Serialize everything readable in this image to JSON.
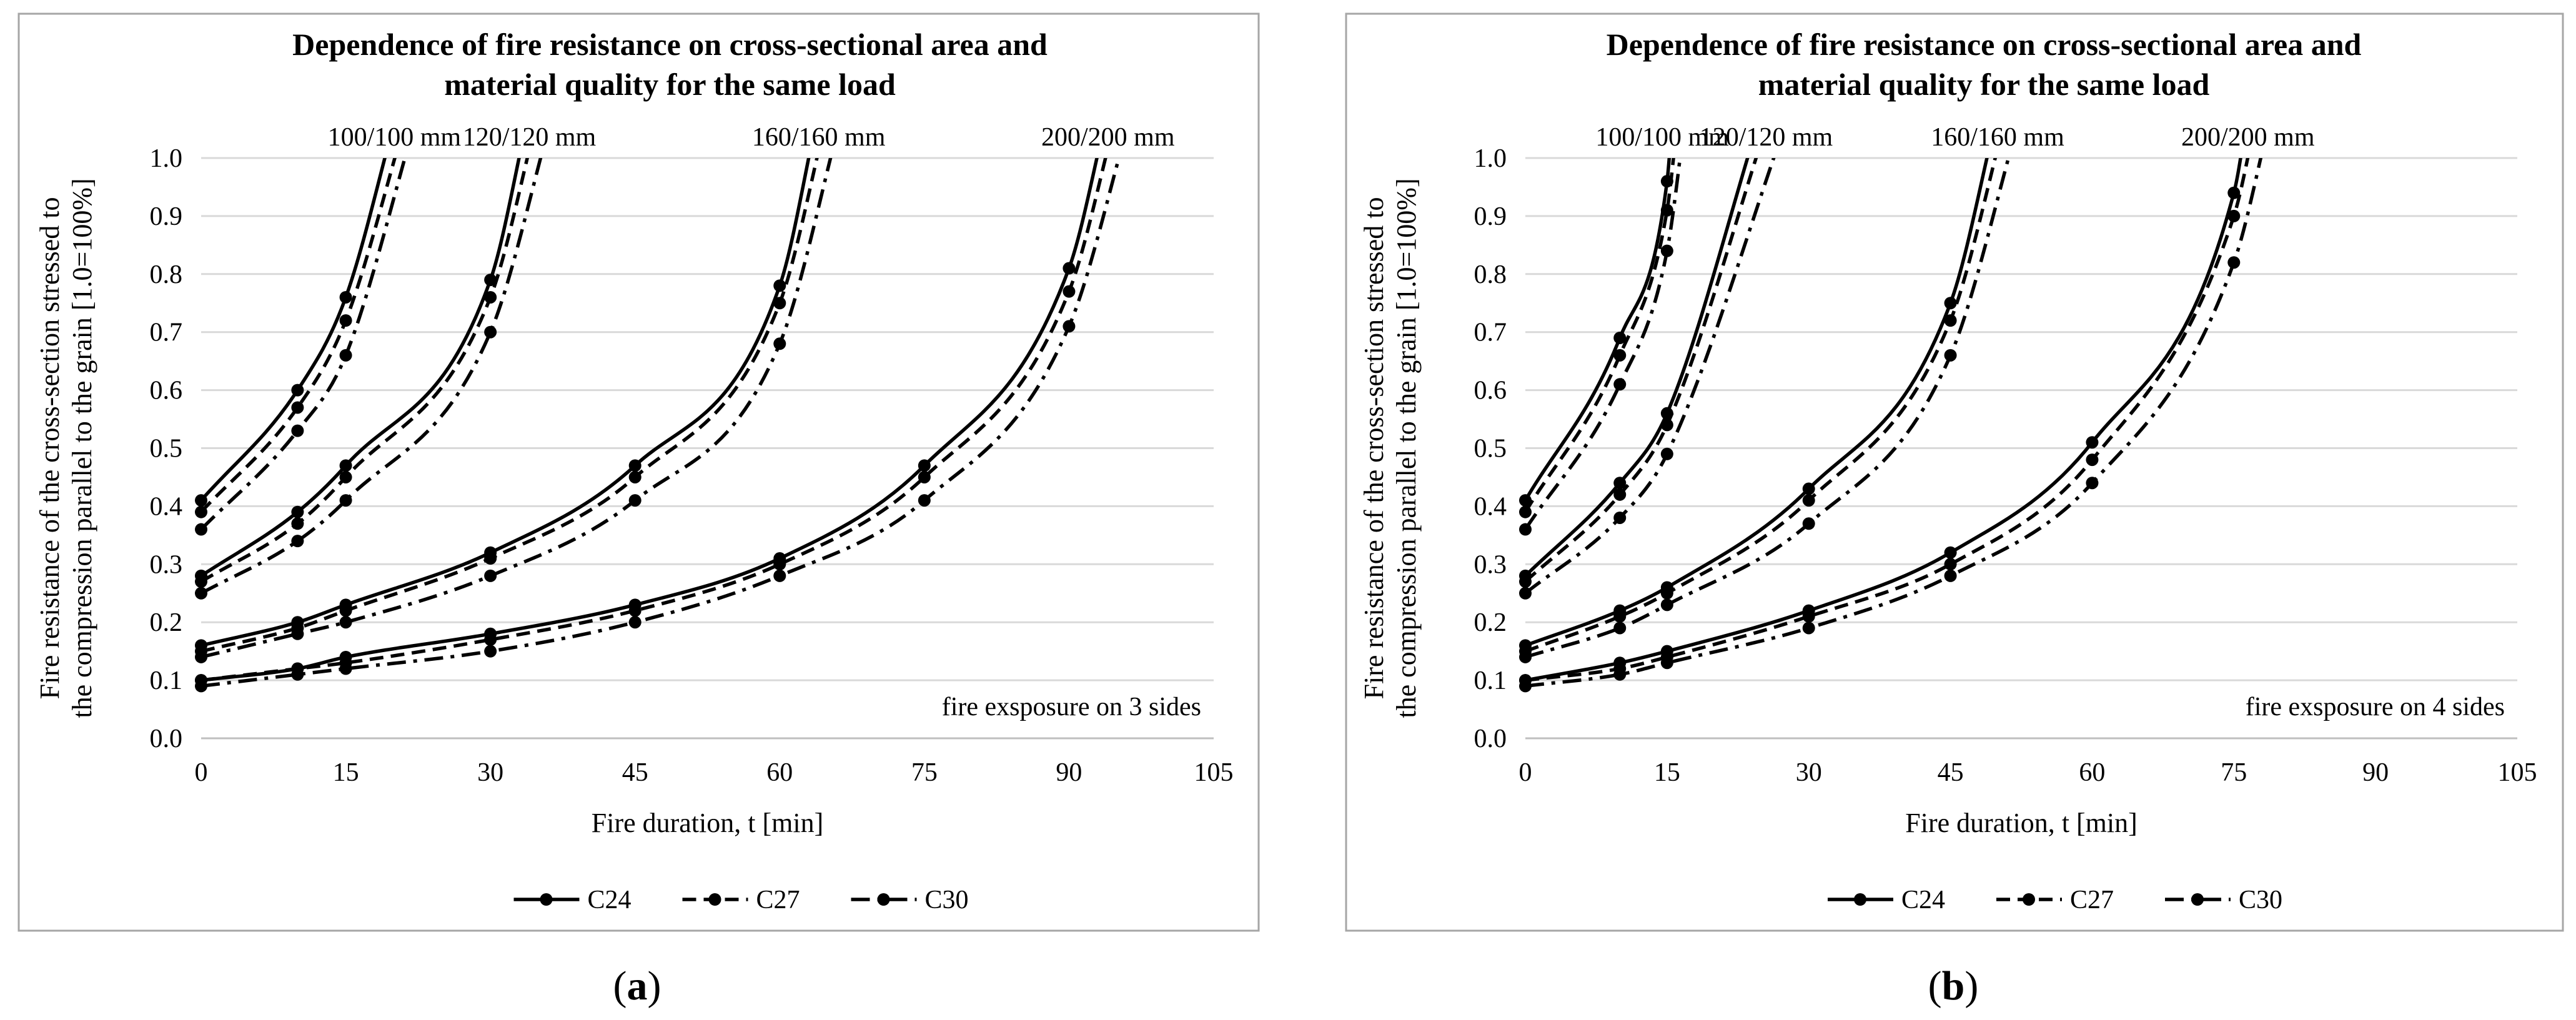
{
  "figure": {
    "series_styles": {
      "C24": "solid",
      "C27": "dashed",
      "C30": "dashdot"
    }
  },
  "chart_data": [
    {
      "type": "line",
      "panel_caption": "(a)",
      "caption_letter": "a",
      "title_lines": [
        "Dependence of fire resistance on cross-sectional area and",
        "material quality for the same load"
      ],
      "xlabel": "Fire duration, t [min]",
      "ylabel_lines": [
        "Fire resistance of the cross-section stressed to",
        "the compression parallel to the grain [1.0=100%]"
      ],
      "xlim": [
        0,
        105
      ],
      "ylim": [
        0,
        1
      ],
      "xticks": [
        0,
        15,
        30,
        45,
        60,
        75,
        90,
        105
      ],
      "xtick_labels": [
        "0",
        "15",
        "30",
        "45",
        "60",
        "75",
        "90",
        "105"
      ],
      "yticks": [
        0,
        0.1,
        0.2,
        0.3,
        0.4,
        0.5,
        0.6,
        0.7,
        0.8,
        0.9,
        1.0
      ],
      "ytick_labels": [
        "0.0",
        "0.1",
        "0.2",
        "0.3",
        "0.4",
        "0.5",
        "0.6",
        "0.7",
        "0.8",
        "0.9",
        "1.0"
      ],
      "exposure_note": "fire exsposure on 3 sides",
      "legend": [
        "C24",
        "C27",
        "C30"
      ],
      "legend_position": "bottom",
      "groups": [
        {
          "section": "100/100 mm",
          "series": [
            {
              "name": "C24",
              "x": [
                0,
                10,
                15
              ],
              "y": [
                0.41,
                0.6,
                0.76
              ],
              "curve_end": 20.5
            },
            {
              "name": "C27",
              "x": [
                0,
                10,
                15
              ],
              "y": [
                0.39,
                0.57,
                0.72
              ],
              "curve_end": 21.5
            },
            {
              "name": "C30",
              "x": [
                0,
                10,
                15
              ],
              "y": [
                0.36,
                0.53,
                0.66
              ],
              "curve_end": 22.5
            }
          ]
        },
        {
          "section": "120/120 mm",
          "series": [
            {
              "name": "C24",
              "x": [
                0,
                10,
                15,
                30
              ],
              "y": [
                0.28,
                0.39,
                0.47,
                0.79
              ],
              "curve_end": 34
            },
            {
              "name": "C27",
              "x": [
                0,
                10,
                15,
                30
              ],
              "y": [
                0.27,
                0.37,
                0.45,
                0.76
              ],
              "curve_end": 35
            },
            {
              "name": "C30",
              "x": [
                0,
                10,
                15,
                30
              ],
              "y": [
                0.25,
                0.34,
                0.41,
                0.7
              ],
              "curve_end": 36.5
            }
          ]
        },
        {
          "section": "160/160 mm",
          "series": [
            {
              "name": "C24",
              "x": [
                0,
                10,
                15,
                30,
                45,
                60
              ],
              "y": [
                0.16,
                0.2,
                0.23,
                0.32,
                0.47,
                0.78
              ],
              "curve_end": 64
            },
            {
              "name": "C27",
              "x": [
                0,
                10,
                15,
                30,
                45,
                60
              ],
              "y": [
                0.15,
                0.19,
                0.22,
                0.31,
                0.45,
                0.75
              ],
              "curve_end": 65
            },
            {
              "name": "C30",
              "x": [
                0,
                10,
                15,
                30,
                45,
                60
              ],
              "y": [
                0.14,
                0.18,
                0.2,
                0.28,
                0.41,
                0.68
              ],
              "curve_end": 66.5
            }
          ]
        },
        {
          "section": "200/200 mm",
          "series": [
            {
              "name": "C24",
              "x": [
                0,
                10,
                15,
                30,
                45,
                60,
                75,
                90
              ],
              "y": [
                0.1,
                0.12,
                0.14,
                0.18,
                0.23,
                0.31,
                0.47,
                0.81
              ],
              "curve_end": 94
            },
            {
              "name": "C27",
              "x": [
                0,
                10,
                15,
                30,
                45,
                60,
                75,
                90
              ],
              "y": [
                0.1,
                0.12,
                0.13,
                0.17,
                0.22,
                0.3,
                0.45,
                0.77
              ],
              "curve_end": 95
            },
            {
              "name": "C30",
              "x": [
                0,
                10,
                15,
                30,
                45,
                60,
                75,
                90
              ],
              "y": [
                0.09,
                0.11,
                0.12,
                0.15,
                0.2,
                0.28,
                0.41,
                0.71
              ],
              "curve_end": 96.5
            }
          ]
        }
      ]
    },
    {
      "type": "line",
      "panel_caption": "(b)",
      "caption_letter": "b",
      "title_lines": [
        "Dependence of fire resistance on cross-sectional area and",
        "material quality for the same load"
      ],
      "xlabel": "Fire duration, t [min]",
      "ylabel_lines": [
        "Fire resistance of the cross-section stressed to",
        "the compression parallel to the grain [1.0=100%]"
      ],
      "xlim": [
        0,
        105
      ],
      "ylim": [
        0,
        1
      ],
      "xticks": [
        0,
        15,
        30,
        45,
        60,
        75,
        90,
        105
      ],
      "xtick_labels": [
        "0",
        "15",
        "30",
        "45",
        "60",
        "75",
        "90",
        "105"
      ],
      "yticks": [
        0,
        0.1,
        0.2,
        0.3,
        0.4,
        0.5,
        0.6,
        0.7,
        0.8,
        0.9,
        1.0
      ],
      "ytick_labels": [
        "0.0",
        "0.1",
        "0.2",
        "0.3",
        "0.4",
        "0.5",
        "0.6",
        "0.7",
        "0.8",
        "0.9",
        "1.0"
      ],
      "exposure_note": "fire exsposure on 4 sides",
      "legend": [
        "C24",
        "C27",
        "C30"
      ],
      "legend_position": "bottom",
      "groups": [
        {
          "section": "100/100 mm",
          "series": [
            {
              "name": "C24",
              "x": [
                0,
                10,
                15
              ],
              "y": [
                0.41,
                0.69,
                0.96
              ],
              "curve_end": 15.6
            },
            {
              "name": "C27",
              "x": [
                0,
                10,
                15
              ],
              "y": [
                0.39,
                0.66,
                0.91
              ],
              "curve_end": 16.2
            },
            {
              "name": "C30",
              "x": [
                0,
                10,
                15
              ],
              "y": [
                0.36,
                0.61,
                0.84
              ],
              "curve_end": 17
            }
          ]
        },
        {
          "section": "120/120 mm",
          "series": [
            {
              "name": "C24",
              "x": [
                0,
                10,
                15
              ],
              "y": [
                0.28,
                0.44,
                0.56
              ],
              "curve_end": 25
            },
            {
              "name": "C27",
              "x": [
                0,
                10,
                15
              ],
              "y": [
                0.27,
                0.42,
                0.54
              ],
              "curve_end": 26
            },
            {
              "name": "C30",
              "x": [
                0,
                10,
                15
              ],
              "y": [
                0.25,
                0.38,
                0.49
              ],
              "curve_end": 28
            }
          ]
        },
        {
          "section": "160/160 mm",
          "series": [
            {
              "name": "C24",
              "x": [
                0,
                10,
                15,
                30,
                45
              ],
              "y": [
                0.16,
                0.22,
                0.26,
                0.43,
                0.75
              ],
              "curve_end": 50
            },
            {
              "name": "C27",
              "x": [
                0,
                10,
                15,
                30,
                45
              ],
              "y": [
                0.15,
                0.21,
                0.25,
                0.41,
                0.72
              ],
              "curve_end": 51
            },
            {
              "name": "C30",
              "x": [
                0,
                10,
                15,
                30,
                45
              ],
              "y": [
                0.14,
                0.19,
                0.23,
                0.37,
                0.66
              ],
              "curve_end": 52.5
            }
          ]
        },
        {
          "section": "200/200 mm",
          "series": [
            {
              "name": "C24",
              "x": [
                0,
                10,
                15,
                30,
                45,
                60,
                75
              ],
              "y": [
                0.1,
                0.13,
                0.15,
                0.22,
                0.32,
                0.51,
                0.94
              ],
              "curve_end": 76.5
            },
            {
              "name": "C27",
              "x": [
                0,
                10,
                15,
                30,
                45,
                60,
                75
              ],
              "y": [
                0.1,
                0.12,
                0.14,
                0.21,
                0.3,
                0.48,
                0.9
              ],
              "curve_end": 77.5
            },
            {
              "name": "C30",
              "x": [
                0,
                10,
                15,
                30,
                45,
                60,
                75
              ],
              "y": [
                0.09,
                0.11,
                0.13,
                0.19,
                0.28,
                0.44,
                0.82
              ],
              "curve_end": 79
            }
          ]
        }
      ]
    }
  ]
}
